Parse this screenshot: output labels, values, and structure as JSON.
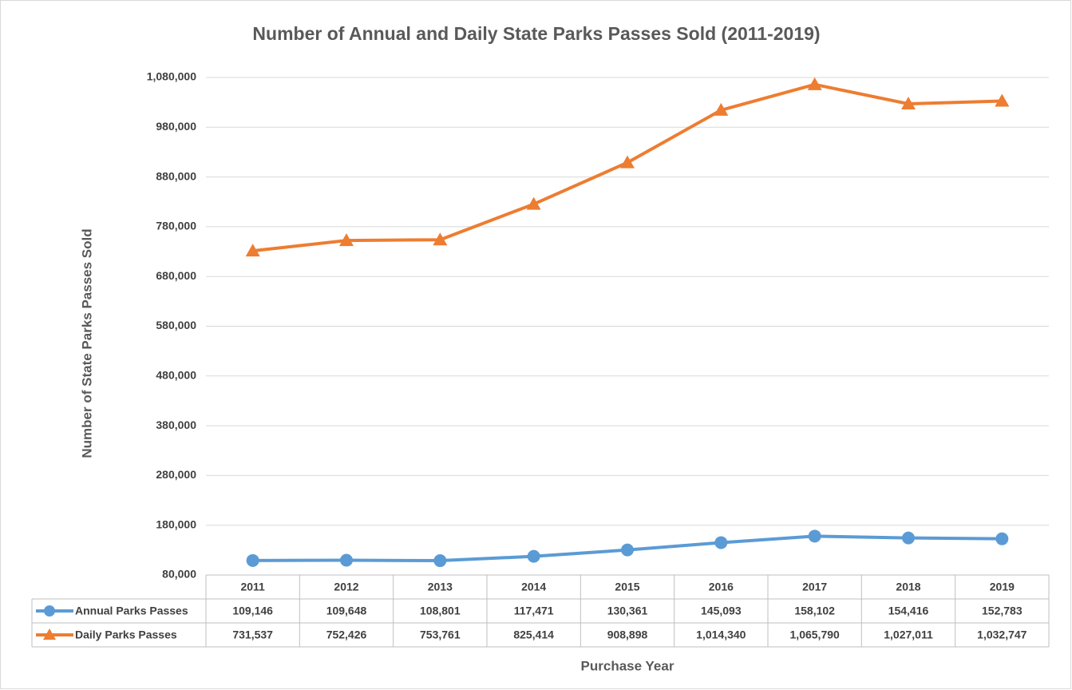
{
  "chart_data": {
    "type": "line",
    "title": "Number of Annual and Daily State Parks Passes Sold (2011-2019)",
    "x_label": "Purchase Year",
    "y_label": "Number of State Parks Passes Sold",
    "categories": [
      "2011",
      "2012",
      "2013",
      "2014",
      "2015",
      "2016",
      "2017",
      "2018",
      "2019"
    ],
    "series": [
      {
        "name": "Annual Parks Passes",
        "color": "#5b9bd5",
        "marker": "circle",
        "values": [
          109146,
          109648,
          108801,
          117471,
          130361,
          145093,
          158102,
          154416,
          152783
        ],
        "value_labels": [
          "109,146",
          "109,648",
          "108,801",
          "117,471",
          "130,361",
          "145,093",
          "158,102",
          "154,416",
          "152,783"
        ]
      },
      {
        "name": "Daily Parks Passes",
        "color": "#ed7d31",
        "marker": "triangle",
        "values": [
          731537,
          752426,
          753761,
          825414,
          908898,
          1014340,
          1065790,
          1027011,
          1032747
        ],
        "value_labels": [
          "731,537",
          "752,426",
          "753,761",
          "825,414",
          "908,898",
          "1,014,340",
          "1,065,790",
          "1,027,011",
          "1,032,747"
        ]
      }
    ],
    "ylim": [
      80000,
      1080000
    ],
    "yticks": [
      {
        "value": 80000,
        "label": "80,000"
      },
      {
        "value": 180000,
        "label": "180,000"
      },
      {
        "value": 280000,
        "label": "280,000"
      },
      {
        "value": 380000,
        "label": "380,000"
      },
      {
        "value": 480000,
        "label": "480,000"
      },
      {
        "value": 580000,
        "label": "580,000"
      },
      {
        "value": 680000,
        "label": "680,000"
      },
      {
        "value": 780000,
        "label": "780,000"
      },
      {
        "value": 880000,
        "label": "880,000"
      },
      {
        "value": 980000,
        "label": "980,000"
      },
      {
        "value": 1080000,
        "label": "1,080,000"
      }
    ],
    "grid": true,
    "data_table": true
  }
}
